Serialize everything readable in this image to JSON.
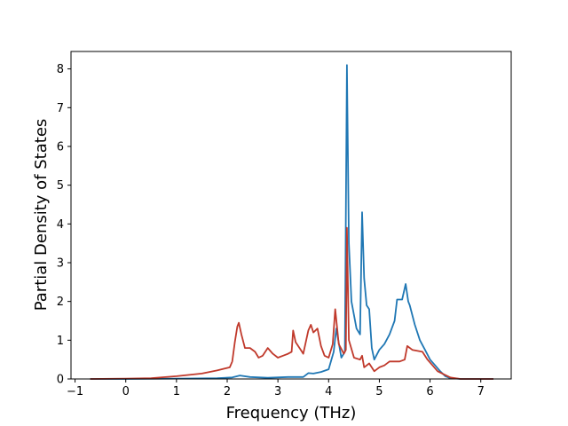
{
  "chart_data": {
    "type": "line",
    "title": "",
    "xlabel": "Frequency (THz)",
    "ylabel": "Partial Density of States",
    "xlim": [
      -1.08,
      7.6
    ],
    "ylim": [
      0,
      8.45
    ],
    "xticks": [
      -1,
      0,
      1,
      2,
      3,
      4,
      5,
      6,
      7
    ],
    "yticks": [
      0,
      1,
      2,
      3,
      4,
      5,
      6,
      7,
      8
    ],
    "grid": false,
    "legend": "none",
    "series": [
      {
        "color": "#1f77b4",
        "points": [
          [
            -0.7,
            0
          ],
          [
            0,
            0
          ],
          [
            1,
            0.01
          ],
          [
            1.8,
            0.02
          ],
          [
            2.1,
            0.04
          ],
          [
            2.25,
            0.09
          ],
          [
            2.45,
            0.05
          ],
          [
            2.8,
            0.03
          ],
          [
            3.2,
            0.05
          ],
          [
            3.5,
            0.05
          ],
          [
            3.6,
            0.15
          ],
          [
            3.7,
            0.14
          ],
          [
            3.85,
            0.18
          ],
          [
            4.0,
            0.25
          ],
          [
            4.1,
            0.7
          ],
          [
            4.15,
            1.3
          ],
          [
            4.25,
            0.55
          ],
          [
            4.32,
            0.7
          ],
          [
            4.36,
            8.1
          ],
          [
            4.4,
            3.5
          ],
          [
            4.45,
            2.0
          ],
          [
            4.55,
            1.3
          ],
          [
            4.62,
            1.15
          ],
          [
            4.66,
            4.3
          ],
          [
            4.7,
            2.6
          ],
          [
            4.75,
            1.9
          ],
          [
            4.8,
            1.8
          ],
          [
            4.85,
            0.8
          ],
          [
            4.9,
            0.5
          ],
          [
            5.0,
            0.75
          ],
          [
            5.1,
            0.9
          ],
          [
            5.2,
            1.15
          ],
          [
            5.3,
            1.5
          ],
          [
            5.35,
            2.05
          ],
          [
            5.45,
            2.05
          ],
          [
            5.52,
            2.45
          ],
          [
            5.57,
            2.0
          ],
          [
            5.6,
            1.9
          ],
          [
            5.7,
            1.4
          ],
          [
            5.8,
            1.0
          ],
          [
            5.9,
            0.75
          ],
          [
            6.0,
            0.5
          ],
          [
            6.1,
            0.35
          ],
          [
            6.2,
            0.2
          ],
          [
            6.3,
            0.07
          ],
          [
            6.4,
            0.02
          ],
          [
            6.6,
            0
          ],
          [
            7.25,
            0
          ]
        ]
      },
      {
        "color": "#c0392b",
        "points": [
          [
            -0.7,
            0
          ],
          [
            0,
            0.01
          ],
          [
            0.5,
            0.02
          ],
          [
            1.0,
            0.07
          ],
          [
            1.5,
            0.14
          ],
          [
            1.8,
            0.22
          ],
          [
            2.05,
            0.3
          ],
          [
            2.1,
            0.45
          ],
          [
            2.15,
            0.95
          ],
          [
            2.2,
            1.35
          ],
          [
            2.23,
            1.45
          ],
          [
            2.28,
            1.15
          ],
          [
            2.35,
            0.8
          ],
          [
            2.45,
            0.8
          ],
          [
            2.55,
            0.7
          ],
          [
            2.62,
            0.55
          ],
          [
            2.7,
            0.6
          ],
          [
            2.8,
            0.8
          ],
          [
            2.9,
            0.65
          ],
          [
            3.0,
            0.55
          ],
          [
            3.1,
            0.6
          ],
          [
            3.2,
            0.65
          ],
          [
            3.27,
            0.7
          ],
          [
            3.3,
            1.25
          ],
          [
            3.35,
            0.95
          ],
          [
            3.45,
            0.75
          ],
          [
            3.5,
            0.65
          ],
          [
            3.6,
            1.25
          ],
          [
            3.65,
            1.4
          ],
          [
            3.7,
            1.2
          ],
          [
            3.78,
            1.3
          ],
          [
            3.85,
            0.85
          ],
          [
            3.92,
            0.6
          ],
          [
            4.0,
            0.55
          ],
          [
            4.08,
            0.9
          ],
          [
            4.13,
            1.8
          ],
          [
            4.2,
            0.9
          ],
          [
            4.3,
            0.65
          ],
          [
            4.34,
            0.75
          ],
          [
            4.36,
            3.9
          ],
          [
            4.4,
            1.0
          ],
          [
            4.5,
            0.55
          ],
          [
            4.62,
            0.5
          ],
          [
            4.66,
            0.6
          ],
          [
            4.7,
            0.3
          ],
          [
            4.8,
            0.4
          ],
          [
            4.9,
            0.2
          ],
          [
            5.0,
            0.3
          ],
          [
            5.1,
            0.35
          ],
          [
            5.2,
            0.45
          ],
          [
            5.4,
            0.45
          ],
          [
            5.5,
            0.5
          ],
          [
            5.55,
            0.85
          ],
          [
            5.65,
            0.75
          ],
          [
            5.85,
            0.7
          ],
          [
            5.95,
            0.5
          ],
          [
            6.05,
            0.35
          ],
          [
            6.15,
            0.2
          ],
          [
            6.3,
            0.1
          ],
          [
            6.4,
            0.04
          ],
          [
            6.6,
            0
          ],
          [
            7.25,
            0
          ]
        ]
      }
    ]
  }
}
